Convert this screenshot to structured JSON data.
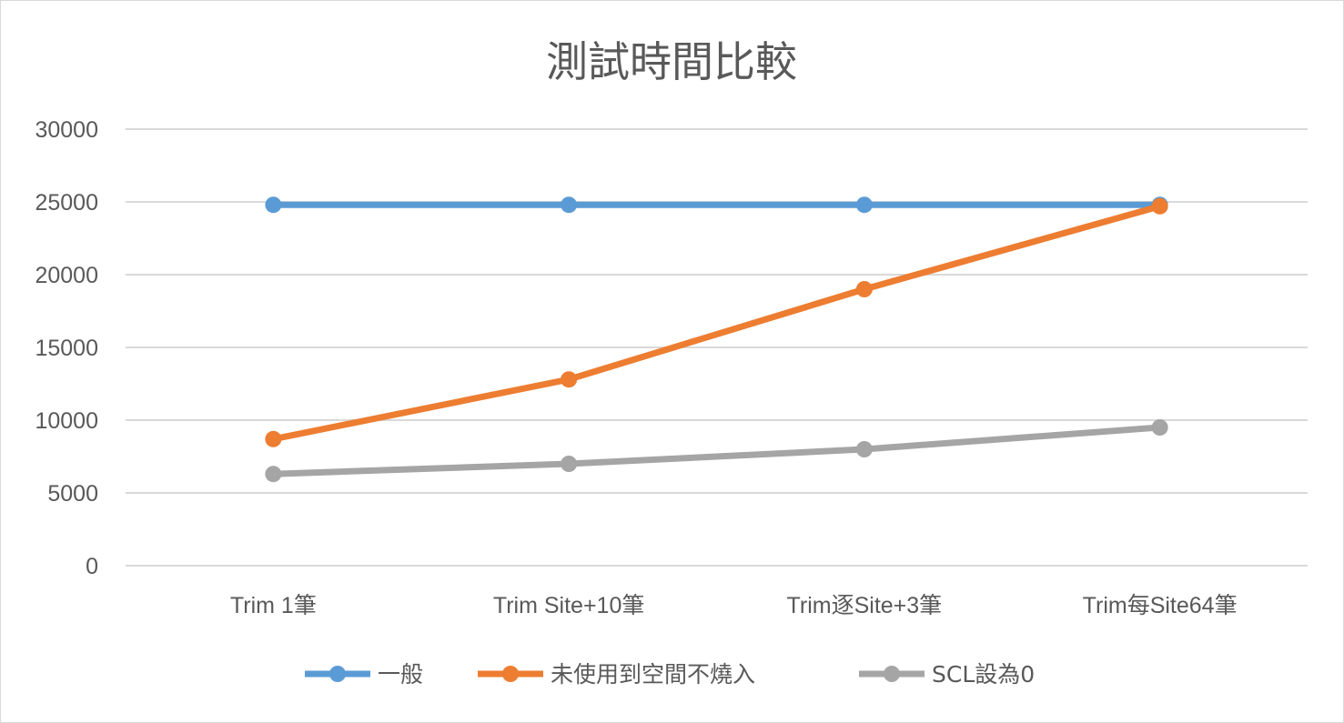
{
  "chart_data": {
    "type": "line",
    "title": "測試時間比較",
    "categories": [
      "Trim 1筆",
      "Trim Site+10筆",
      "Trim逐Site+3筆",
      "Trim每Site64筆"
    ],
    "ylim": [
      0,
      30000
    ],
    "yticks": [
      0,
      5000,
      10000,
      15000,
      20000,
      25000,
      30000
    ],
    "grid": true,
    "legend_position": "bottom",
    "series": [
      {
        "name": "一般",
        "color": "#5b9bd5",
        "values": [
          24800,
          24800,
          24800,
          24800
        ]
      },
      {
        "name": "未使用到空間不燒入",
        "color": "#ed7d31",
        "values": [
          8700,
          12800,
          19000,
          24700
        ]
      },
      {
        "name": "SCL設為0",
        "color": "#a5a5a5",
        "values": [
          6300,
          7000,
          8000,
          9500
        ]
      }
    ]
  }
}
